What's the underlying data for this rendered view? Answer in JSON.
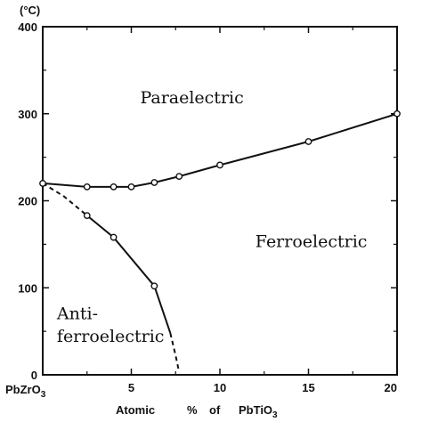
{
  "chart_data": {
    "type": "scatter",
    "y_unit": "(°C)",
    "x_left_label": "PbZrO3",
    "xlabel_parts": [
      "Atomic",
      "%",
      "of",
      "PbTiO3"
    ],
    "xlim": [
      0,
      20
    ],
    "ylim": [
      0,
      400
    ],
    "x_tick_labels": [
      "5",
      "10",
      "15",
      "20"
    ],
    "x_ticks": [
      5,
      10,
      15,
      20
    ],
    "y_tick_labels": [
      "0",
      "100",
      "200",
      "300",
      "400"
    ],
    "y_ticks": [
      0,
      100,
      200,
      300,
      400
    ],
    "grid": false,
    "regions": [
      {
        "label": "Paraelectric",
        "lines": [
          "Paraelectric"
        ],
        "x": 5.5,
        "y": 312
      },
      {
        "label": "Ferroelectric",
        "lines": [
          "Ferroelectric"
        ],
        "x": 12.0,
        "y": 147
      },
      {
        "label": "Anti-ferroelectric",
        "lines": [
          "Anti-",
          "ferroelectric"
        ],
        "x": 0.8,
        "y": [
          64,
          38
        ]
      }
    ],
    "series": [
      {
        "boundary": "paraelectric-ferroelectric",
        "style": "solid",
        "points": [
          {
            "x": 0,
            "y": 220
          },
          {
            "x": 2.5,
            "y": 216
          },
          {
            "x": 4,
            "y": 216
          },
          {
            "x": 5,
            "y": 216
          },
          {
            "x": 6.3,
            "y": 221
          },
          {
            "x": 7.7,
            "y": 228
          },
          {
            "x": 10,
            "y": 241
          },
          {
            "x": 15,
            "y": 268
          },
          {
            "x": 20,
            "y": 300
          }
        ]
      },
      {
        "boundary": "ferroelectric-antiferroelectric",
        "style": "solid-then-dashed",
        "points": [
          {
            "x": 2.5,
            "y": 183
          },
          {
            "x": 4,
            "y": 158
          },
          {
            "x": 6.3,
            "y": 102
          }
        ],
        "dashed_segments": [
          [
            {
              "x": 0,
              "y": 220
            },
            {
              "x": 1.2,
              "y": 205
            },
            {
              "x": 2.5,
              "y": 183
            }
          ],
          [
            {
              "x": 7.2,
              "y": 48
            },
            {
              "x": 7.5,
              "y": 22
            },
            {
              "x": 7.7,
              "y": 3
            }
          ]
        ]
      }
    ]
  }
}
